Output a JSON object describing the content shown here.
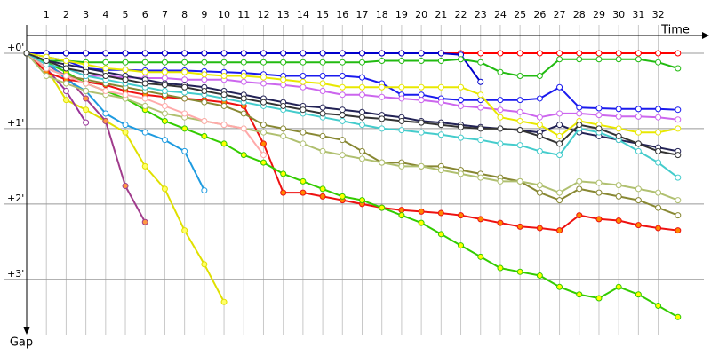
{
  "chart_data": {
    "type": "line",
    "x_label": "Time",
    "y_label": "Gap",
    "x": [
      0,
      1,
      2,
      3,
      4,
      5,
      6,
      7,
      8,
      9,
      10,
      11,
      12,
      13,
      14,
      15,
      16,
      17,
      18,
      19,
      20,
      21,
      22,
      23,
      24,
      25,
      26,
      27,
      28,
      29,
      30,
      31,
      32,
      33
    ],
    "xlim": [
      0,
      34
    ],
    "xticks": [
      1,
      2,
      3,
      4,
      5,
      6,
      7,
      8,
      9,
      10,
      11,
      12,
      13,
      14,
      15,
      16,
      17,
      18,
      19,
      20,
      21,
      22,
      23,
      24,
      25,
      26,
      27,
      28,
      29,
      30,
      31,
      32
    ],
    "ylim": [
      0,
      3.65
    ],
    "yticks": [
      {
        "value": 0,
        "label": "+0'"
      },
      {
        "value": 1,
        "label": "+1'"
      },
      {
        "value": 2,
        "label": "+2'"
      },
      {
        "value": 3,
        "label": "+3'"
      }
    ],
    "grid": true,
    "series": [
      {
        "color": "#ff0000",
        "marker": "#ffffff",
        "values": [
          0,
          0,
          0,
          0,
          0,
          0,
          0,
          0,
          0,
          0,
          0,
          0,
          0,
          0,
          0,
          0,
          0,
          0,
          0,
          0,
          0,
          0,
          0,
          0,
          0,
          0,
          0,
          0,
          0,
          0,
          0,
          0,
          0,
          0
        ]
      },
      {
        "color": "#0000cc",
        "marker": "#ffffff",
        "values": [
          0,
          0,
          0,
          0,
          0,
          0,
          0,
          0,
          0,
          0,
          0,
          0,
          0,
          0,
          0,
          0,
          0,
          0,
          0,
          0,
          0,
          0,
          0.02,
          0.38,
          null,
          null,
          null,
          null,
          null,
          null,
          null,
          null,
          null,
          null
        ]
      },
      {
        "color": "#22bb11",
        "marker": "#ffffff",
        "values": [
          0,
          0.1,
          0.1,
          0.12,
          0.12,
          0.12,
          0.12,
          0.12,
          0.12,
          0.12,
          0.12,
          0.12,
          0.12,
          0.12,
          0.12,
          0.12,
          0.12,
          0.12,
          0.1,
          0.1,
          0.1,
          0.1,
          0.08,
          0.12,
          0.25,
          0.3,
          0.3,
          0.08,
          0.08,
          0.08,
          0.08,
          0.08,
          0.12,
          0.2
        ]
      },
      {
        "color": "#1a1aee",
        "marker": "#ffffff",
        "values": [
          0,
          0.05,
          0.1,
          0.2,
          0.22,
          0.22,
          0.23,
          0.23,
          0.23,
          0.24,
          0.25,
          0.26,
          0.28,
          0.3,
          0.3,
          0.3,
          0.3,
          0.32,
          0.4,
          0.55,
          0.55,
          0.6,
          0.62,
          0.62,
          0.62,
          0.62,
          0.6,
          0.45,
          0.72,
          0.73,
          0.74,
          0.74,
          0.74,
          0.75
        ]
      },
      {
        "color": "#e0e000",
        "marker": "#ffff66",
        "values": [
          0,
          0.2,
          0.62,
          0.75,
          0.9,
          1.05,
          1.5,
          1.8,
          2.35,
          2.8,
          3.3,
          null,
          null,
          null,
          null,
          null,
          null,
          null,
          null,
          null,
          null,
          null,
          null,
          null,
          null,
          null,
          null,
          null,
          null,
          null,
          null,
          null,
          null,
          null
        ]
      },
      {
        "color": "#993399",
        "marker": "#ffffff",
        "values": [
          0,
          0.2,
          0.5,
          0.92,
          null,
          null,
          null,
          null,
          null,
          null,
          null,
          null,
          null,
          null,
          null,
          null,
          null,
          null,
          null,
          null,
          null,
          null,
          null,
          null,
          null,
          null,
          null,
          null,
          null,
          null,
          null,
          null,
          null,
          null
        ]
      },
      {
        "color": "#a03c8c",
        "marker": "#ff9944",
        "values": [
          0,
          0.15,
          0.3,
          0.6,
          0.9,
          1.76,
          2.24,
          null,
          null,
          null,
          null,
          null,
          null,
          null,
          null,
          null,
          null,
          null,
          null,
          null,
          null,
          null,
          null,
          null,
          null,
          null,
          null,
          null,
          null,
          null,
          null,
          null,
          null,
          null
        ]
      },
      {
        "color": "#1e9be0",
        "marker": "#ffffff",
        "values": [
          0,
          0.1,
          0.35,
          0.5,
          0.8,
          0.95,
          1.05,
          1.15,
          1.3,
          1.82,
          null,
          null,
          null,
          null,
          null,
          null,
          null,
          null,
          null,
          null,
          null,
          null,
          null,
          null,
          null,
          null,
          null,
          null,
          null,
          null,
          null,
          null,
          null,
          null
        ]
      },
      {
        "color": "#ee1111",
        "marker": "#ff8800",
        "values": [
          0,
          0.25,
          0.35,
          0.38,
          0.42,
          0.5,
          0.55,
          0.58,
          0.6,
          0.62,
          0.65,
          0.7,
          1.2,
          1.85,
          1.85,
          1.9,
          1.95,
          2.0,
          2.05,
          2.08,
          2.1,
          2.12,
          2.15,
          2.2,
          2.25,
          2.3,
          2.32,
          2.35,
          2.15,
          2.2,
          2.22,
          2.28,
          2.32,
          2.35
        ]
      },
      {
        "color": "#33cc00",
        "marker": "#ffff00",
        "values": [
          0,
          0.12,
          0.25,
          0.4,
          0.5,
          0.6,
          0.75,
          0.9,
          1.0,
          1.1,
          1.2,
          1.35,
          1.45,
          1.6,
          1.7,
          1.8,
          1.9,
          1.95,
          2.05,
          2.15,
          2.25,
          2.4,
          2.55,
          2.7,
          2.85,
          2.9,
          2.95,
          3.1,
          3.2,
          3.25,
          3.1,
          3.2,
          3.35,
          3.5
        ]
      },
      {
        "color": "#888833",
        "marker": "#ffffff",
        "values": [
          0,
          0.2,
          0.3,
          0.35,
          0.4,
          0.45,
          0.5,
          0.55,
          0.6,
          0.65,
          0.7,
          0.8,
          0.95,
          1.0,
          1.05,
          1.1,
          1.15,
          1.3,
          1.45,
          1.45,
          1.5,
          1.5,
          1.55,
          1.6,
          1.65,
          1.7,
          1.85,
          1.95,
          1.8,
          1.85,
          1.9,
          1.95,
          2.05,
          2.15
        ]
      },
      {
        "color": "#b0c070",
        "marker": "#ffffff",
        "values": [
          0,
          0.3,
          0.4,
          0.5,
          0.55,
          0.6,
          0.7,
          0.8,
          0.85,
          0.9,
          0.95,
          1.0,
          1.05,
          1.1,
          1.2,
          1.3,
          1.35,
          1.4,
          1.45,
          1.5,
          1.5,
          1.55,
          1.6,
          1.65,
          1.7,
          1.7,
          1.75,
          1.85,
          1.7,
          1.72,
          1.75,
          1.8,
          1.85,
          1.95
        ]
      },
      {
        "color": "#ffaaaa",
        "marker": "#ffffff",
        "values": [
          0,
          0.2,
          0.3,
          0.4,
          0.5,
          0.55,
          0.6,
          0.7,
          0.8,
          0.9,
          0.95,
          1.0,
          1.35,
          null,
          null,
          null,
          null,
          null,
          null,
          null,
          null,
          null,
          null,
          null,
          null,
          null,
          null,
          null,
          null,
          null,
          null,
          null,
          null,
          null
        ]
      },
      {
        "color": "#cc66ee",
        "marker": "#ffffff",
        "values": [
          0,
          0.1,
          0.2,
          0.3,
          0.3,
          0.32,
          0.33,
          0.33,
          0.35,
          0.35,
          0.35,
          0.38,
          0.4,
          0.42,
          0.45,
          0.5,
          0.55,
          0.55,
          0.58,
          0.6,
          0.62,
          0.65,
          0.7,
          0.72,
          0.75,
          0.78,
          0.85,
          0.8,
          0.8,
          0.82,
          0.84,
          0.84,
          0.85,
          0.88
        ]
      },
      {
        "color": "#222255",
        "marker": "#ffffff",
        "values": [
          0,
          0.1,
          0.15,
          0.2,
          0.25,
          0.3,
          0.35,
          0.4,
          0.42,
          0.45,
          0.5,
          0.55,
          0.6,
          0.65,
          0.7,
          0.72,
          0.75,
          0.78,
          0.82,
          0.85,
          0.9,
          0.92,
          0.95,
          0.98,
          1.0,
          1.02,
          1.05,
          0.95,
          1.05,
          1.1,
          1.15,
          1.2,
          1.25,
          1.3
        ]
      },
      {
        "color": "#44cccc",
        "marker": "#ffffff",
        "values": [
          0,
          0.15,
          0.2,
          0.3,
          0.35,
          0.4,
          0.45,
          0.5,
          0.52,
          0.55,
          0.6,
          0.65,
          0.7,
          0.75,
          0.8,
          0.85,
          0.9,
          0.95,
          1.0,
          1.02,
          1.05,
          1.08,
          1.12,
          1.15,
          1.2,
          1.22,
          1.3,
          1.35,
          1.0,
          1.05,
          1.15,
          1.3,
          1.45,
          1.65
        ]
      },
      {
        "color": "#e8e800",
        "marker": "#ffffff",
        "values": [
          0,
          0.05,
          0.1,
          0.15,
          0.2,
          0.22,
          0.25,
          0.25,
          0.25,
          0.28,
          0.3,
          0.3,
          0.32,
          0.35,
          0.38,
          0.4,
          0.45,
          0.45,
          0.45,
          0.45,
          0.45,
          0.45,
          0.45,
          0.55,
          0.85,
          0.9,
          0.95,
          1.1,
          0.9,
          0.95,
          1.0,
          1.05,
          1.05,
          1.0
        ]
      },
      {
        "color": "#333333",
        "marker": "#ffffff",
        "values": [
          0,
          0.1,
          0.2,
          0.25,
          0.3,
          0.35,
          0.4,
          0.42,
          0.45,
          0.5,
          0.55,
          0.6,
          0.65,
          0.7,
          0.75,
          0.8,
          0.82,
          0.85,
          0.87,
          0.9,
          0.92,
          0.95,
          0.98,
          1.0,
          1.0,
          1.02,
          1.1,
          1.2,
          0.95,
          1.0,
          1.1,
          1.2,
          1.3,
          1.35
        ]
      }
    ]
  }
}
